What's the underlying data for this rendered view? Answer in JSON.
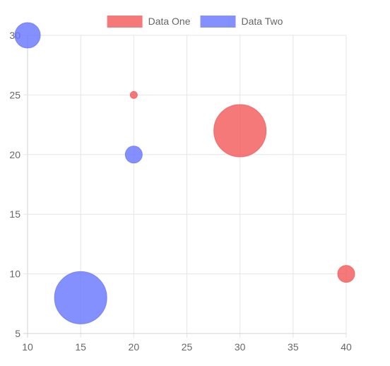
{
  "chart_data": {
    "type": "bubble",
    "title": "",
    "xlabel": "",
    "ylabel": "",
    "xlim": [
      10,
      40
    ],
    "ylim": [
      5,
      30
    ],
    "x_ticks": [
      10,
      15,
      20,
      25,
      30,
      35,
      40
    ],
    "y_ticks": [
      5,
      10,
      15,
      20,
      25,
      30
    ],
    "grid": true,
    "legend_position": "top",
    "series": [
      {
        "name": "Data One",
        "color": "#ff6384",
        "fill": "rgba(243,88,88,0.8)",
        "points": [
          {
            "x": 20,
            "y": 25,
            "r": 5
          },
          {
            "x": 30,
            "y": 22,
            "r": 37
          },
          {
            "x": 40,
            "y": 10,
            "r": 12
          }
        ]
      },
      {
        "name": "Data Two",
        "color": "#6674ff",
        "fill": "rgba(102,116,255,0.8)",
        "points": [
          {
            "x": 10,
            "y": 30,
            "r": 18
          },
          {
            "x": 20,
            "y": 20,
            "r": 12
          },
          {
            "x": 15,
            "y": 8,
            "r": 37
          }
        ]
      }
    ]
  }
}
